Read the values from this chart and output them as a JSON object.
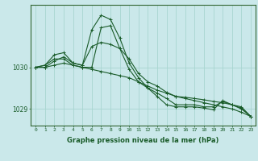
{
  "title": "Graphe pression niveau de la mer (hPa)",
  "background_color": "#cae8ea",
  "plot_bg_color": "#cae8ea",
  "grid_color": "#a8d5d0",
  "line_color": "#1a5c2a",
  "x_ticks": [
    0,
    1,
    2,
    3,
    4,
    5,
    6,
    7,
    8,
    9,
    10,
    11,
    12,
    13,
    14,
    15,
    16,
    17,
    18,
    19,
    20,
    21,
    22,
    23
  ],
  "ylim": [
    1028.6,
    1031.5
  ],
  "ytick_positions": [
    1029,
    1030
  ],
  "lines": [
    [
      1030.0,
      1030.0,
      1030.05,
      1030.1,
      1030.05,
      1030.0,
      1029.95,
      1029.9,
      1029.85,
      1029.8,
      1029.75,
      1029.65,
      1029.55,
      1029.45,
      1029.38,
      1029.3,
      1029.25,
      1029.2,
      1029.15,
      1029.1,
      1029.05,
      1029.0,
      1028.92,
      1028.82
    ],
    [
      1030.0,
      1030.0,
      1030.15,
      1030.25,
      1030.1,
      1030.05,
      1030.5,
      1030.6,
      1030.55,
      1030.45,
      1030.2,
      1029.85,
      1029.65,
      1029.55,
      1029.4,
      1029.3,
      1029.28,
      1029.25,
      1029.22,
      1029.18,
      1029.15,
      1029.1,
      1029.0,
      1028.82
    ],
    [
      1030.0,
      1030.05,
      1030.3,
      1030.35,
      1030.1,
      1030.05,
      1030.9,
      1031.25,
      1031.15,
      1030.7,
      1030.1,
      1029.75,
      1029.5,
      1029.3,
      1029.1,
      1029.05,
      1029.05,
      1029.05,
      1029.02,
      1028.98,
      1029.2,
      1029.1,
      1029.05,
      1028.82
    ],
    [
      1030.0,
      1030.05,
      1030.2,
      1030.2,
      1030.05,
      1030.0,
      1030.0,
      1030.95,
      1031.0,
      1030.45,
      1029.95,
      1029.65,
      1029.5,
      1029.38,
      1029.25,
      1029.1,
      1029.1,
      1029.1,
      1029.05,
      1029.05,
      1029.18,
      1029.1,
      1029.02,
      1028.82
    ]
  ]
}
